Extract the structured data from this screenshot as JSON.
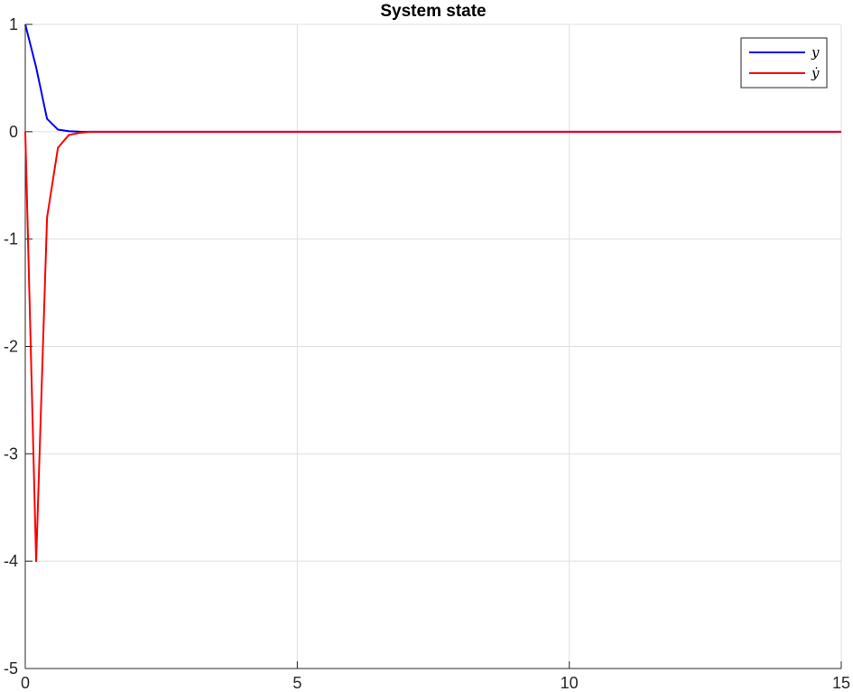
{
  "chart_data": {
    "type": "line",
    "title": "System state",
    "xlabel": "",
    "ylabel": "",
    "xlim": [
      0,
      15
    ],
    "ylim": [
      -5,
      1
    ],
    "xticks": [
      0,
      5,
      10,
      15
    ],
    "xtick_labels": [
      "0",
      "5",
      "10",
      "15"
    ],
    "yticks": [
      -5,
      -4,
      -3,
      -2,
      -1,
      0,
      1
    ],
    "ytick_labels": [
      "-5",
      "-4",
      "-3",
      "-2",
      "-1",
      "0",
      "1"
    ],
    "grid": true,
    "legend_position": "top-right",
    "series": [
      {
        "name": "y",
        "color": "#0000FF",
        "x": [
          0,
          0.2,
          0.4,
          0.6,
          0.8,
          1.0,
          1.2,
          1.5,
          2,
          3,
          5,
          10,
          15
        ],
        "y": [
          1,
          0.6,
          0.12,
          0.02,
          0.005,
          0.001,
          0,
          0,
          0,
          0,
          0,
          0,
          0
        ]
      },
      {
        "name": "ẏ",
        "color": "#FF0000",
        "x": [
          0,
          0.2,
          0.4,
          0.6,
          0.8,
          1.0,
          1.2,
          1.5,
          2,
          3,
          5,
          10,
          15
        ],
        "y": [
          0,
          -4,
          -0.8,
          -0.15,
          -0.03,
          -0.01,
          0,
          0,
          0,
          0,
          0,
          0,
          0
        ]
      }
    ]
  }
}
